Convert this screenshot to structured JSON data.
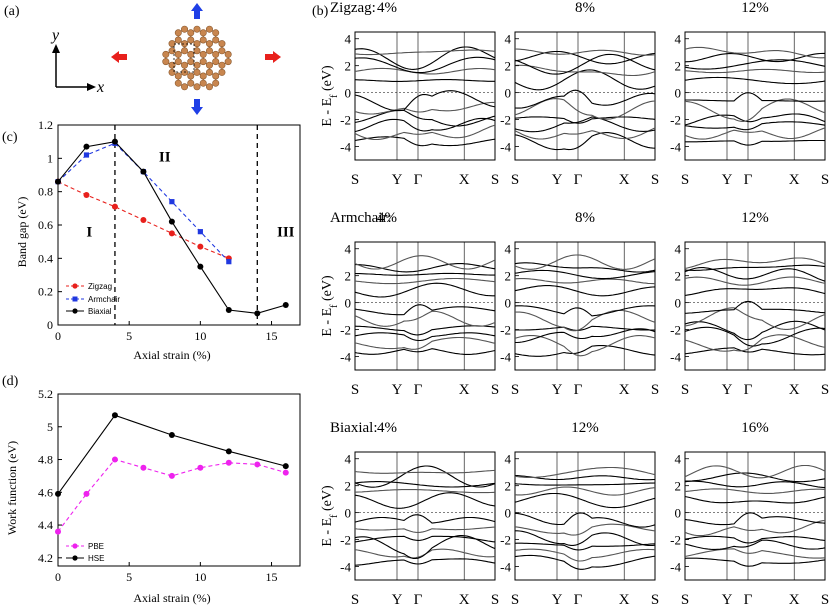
{
  "panel_labels": {
    "a": "(a)",
    "b": "(b)",
    "c": "(c)",
    "d": "(d)"
  },
  "panel_a": {
    "axis_x": "x",
    "axis_y": "y"
  },
  "band_rows": [
    {
      "label": "Zigzag:",
      "cols": [
        "4%",
        "8%",
        "12%"
      ]
    },
    {
      "label": "Armchair:",
      "cols": [
        "4%",
        "8%",
        "12%"
      ]
    },
    {
      "label": "Biaxial:",
      "cols": [
        "4%",
        "12%",
        "16%"
      ]
    }
  ],
  "band_axes": {
    "ylabel": "E - E",
    "ylabel_sub": "f",
    "ylabel_unit": " (eV)",
    "ylim": [
      -5,
      4.5
    ],
    "yticks": [
      "4",
      "2",
      "0",
      "-2",
      "-4"
    ],
    "kpoints": [
      "S",
      "Y",
      "Γ",
      "X",
      "S"
    ]
  },
  "chart_data": [
    {
      "type": "line",
      "title": "",
      "xlabel": "Axial strain (%)",
      "ylabel": "Band gap (eV)",
      "xlim": [
        0,
        17
      ],
      "ylim": [
        0,
        1.2
      ],
      "xticks": [
        "0",
        "5",
        "10",
        "15"
      ],
      "yticks": [
        "0",
        "0.2",
        "0.4",
        "0.6",
        "0.8",
        "1",
        "1.2"
      ],
      "series": [
        {
          "name": "Zigzag",
          "color": "#e8201c",
          "dash": true,
          "marker": "circle",
          "x": [
            0,
            2,
            4,
            6,
            8,
            10,
            12
          ],
          "y": [
            0.86,
            0.78,
            0.71,
            0.63,
            0.55,
            0.47,
            0.4
          ]
        },
        {
          "name": "Armchair",
          "color": "#2038e0",
          "dash": true,
          "marker": "square",
          "x": [
            0,
            2,
            4,
            6,
            8,
            10,
            12
          ],
          "y": [
            0.86,
            1.02,
            1.09,
            0.92,
            0.74,
            0.56,
            0.38
          ]
        },
        {
          "name": "Biaxial",
          "color": "#000000",
          "dash": false,
          "marker": "circle",
          "x": [
            0,
            2,
            4,
            6,
            8,
            10,
            12,
            14,
            16
          ],
          "y": [
            0.86,
            1.07,
            1.1,
            0.92,
            0.62,
            0.35,
            0.09,
            0.07,
            0.12
          ]
        }
      ],
      "vlines": [
        4,
        14
      ],
      "regions": [
        {
          "label": "I",
          "x": 2.2,
          "y": 0.53
        },
        {
          "label": "II",
          "x": 7.5,
          "y": 0.98
        },
        {
          "label": "III",
          "x": 16.0,
          "y": 0.53
        }
      ],
      "legend": "lower-left"
    },
    {
      "type": "line",
      "title": "",
      "xlabel": "Axial strain (%)",
      "ylabel": "Work function (eV)",
      "xlim": [
        0,
        17
      ],
      "ylim": [
        4.15,
        5.2
      ],
      "xticks": [
        "0",
        "5",
        "10",
        "15"
      ],
      "yticks": [
        "4.2",
        "4.4",
        "4.6",
        "4.8",
        "5",
        "5.2"
      ],
      "series": [
        {
          "name": "PBE",
          "color": "#ee22ee",
          "dash": true,
          "marker": "circle",
          "x": [
            0,
            2,
            4,
            6,
            8,
            10,
            12,
            14,
            16
          ],
          "y": [
            4.36,
            4.59,
            4.8,
            4.75,
            4.7,
            4.75,
            4.78,
            4.77,
            4.72
          ]
        },
        {
          "name": "HSE",
          "color": "#000000",
          "dash": false,
          "marker": "circle",
          "x": [
            0,
            4,
            8,
            12,
            16
          ],
          "y": [
            4.59,
            5.07,
            4.95,
            4.85,
            4.76
          ]
        }
      ],
      "legend": "lower-left"
    }
  ]
}
